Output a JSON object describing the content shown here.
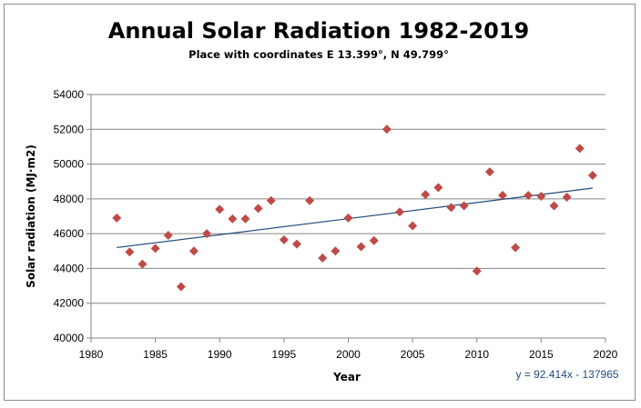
{
  "colors": {
    "marker": "#be4b48",
    "trendline": "#1f497d",
    "gridline": "#868686",
    "equation_text": "#1f497d"
  },
  "chart_data": {
    "type": "scatter",
    "title": "Annual Solar Radiation 1982-2019",
    "subtitle": "Place with coordinates E 13.399°, N 49.799°",
    "xlabel": "Year",
    "ylabel": "Solar radiation (MJ·m2)",
    "xlim": [
      1980,
      2020
    ],
    "ylim": [
      40000,
      54000
    ],
    "x_ticks": [
      1980,
      1985,
      1990,
      1995,
      2000,
      2005,
      2010,
      2015,
      2020
    ],
    "y_ticks": [
      40000,
      42000,
      44000,
      46000,
      48000,
      50000,
      52000,
      54000
    ],
    "grid": "horizontal",
    "marker": "diamond",
    "x": [
      1982,
      1983,
      1984,
      1985,
      1986,
      1987,
      1988,
      1989,
      1990,
      1991,
      1992,
      1993,
      1994,
      1995,
      1996,
      1997,
      1998,
      1999,
      2000,
      2001,
      2002,
      2003,
      2004,
      2005,
      2006,
      2007,
      2008,
      2009,
      2010,
      2011,
      2012,
      2013,
      2014,
      2015,
      2016,
      2017,
      2018,
      2019
    ],
    "y": [
      46900,
      44950,
      44250,
      45150,
      45900,
      42950,
      45000,
      46000,
      47400,
      46850,
      46850,
      47450,
      47900,
      45650,
      45400,
      47900,
      44600,
      45000,
      46900,
      45250,
      45600,
      52000,
      47250,
      46450,
      48250,
      48650,
      47500,
      47600,
      43850,
      49550,
      48200,
      45200,
      48200,
      48150,
      47600,
      48100,
      50900,
      49350
    ],
    "trendline": {
      "slope": 92.414,
      "intercept": -137965,
      "x_range": [
        1982,
        2019
      ],
      "equation_label": "y = 92.414x  - 137965"
    }
  }
}
